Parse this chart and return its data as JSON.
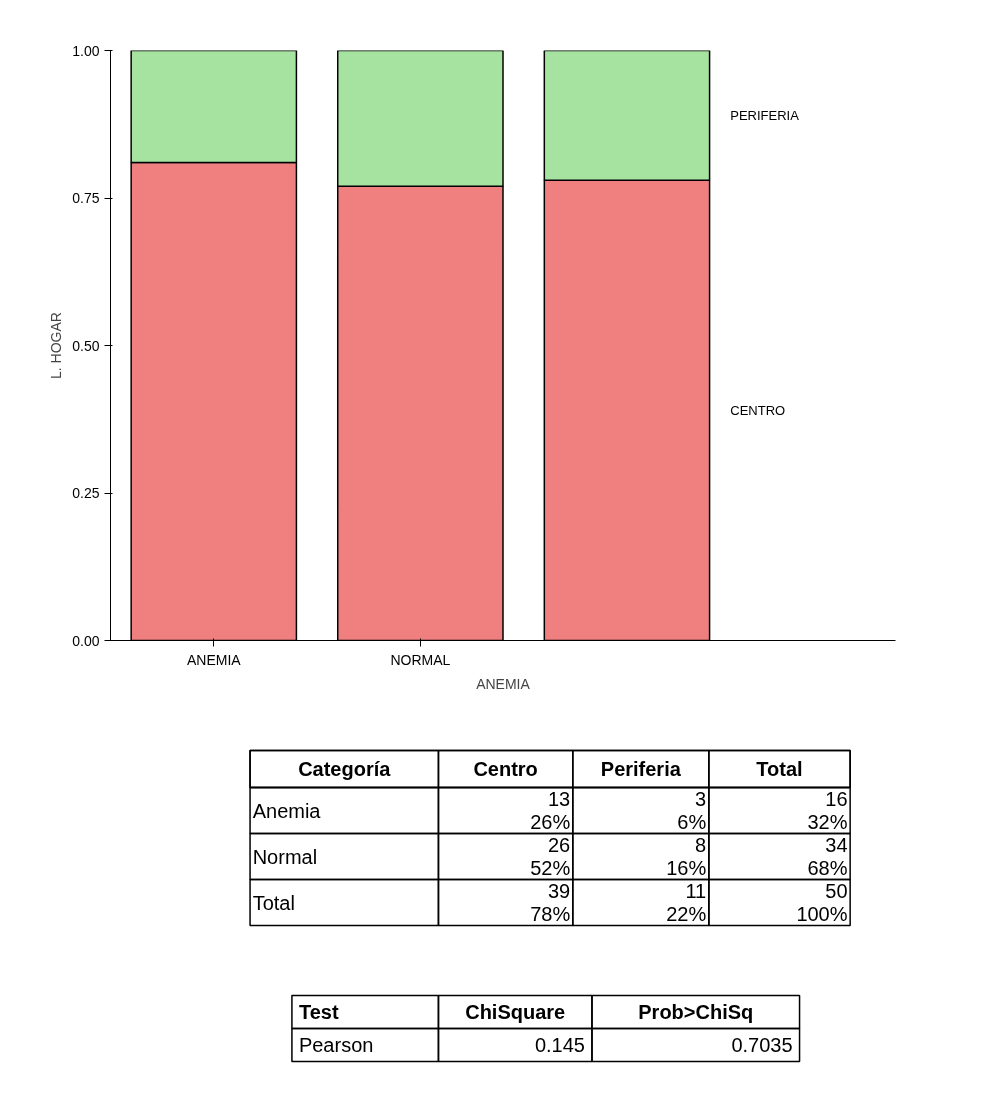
{
  "chart_data": {
    "type": "bar",
    "stacked": true,
    "ylabel": "L. HOGAR",
    "xlabel": "ANEMIA",
    "categories": [
      "ANEMIA",
      "NORMAL",
      null
    ],
    "series": [
      {
        "name": "CENTRO",
        "color": "#f08080",
        "values": [
          0.81,
          0.77,
          0.78
        ]
      },
      {
        "name": "PERIFERIA",
        "color": "#a6e3a0",
        "values": [
          0.19,
          0.23,
          0.22
        ]
      }
    ],
    "ylim": [
      0,
      1
    ],
    "yticks": [
      {
        "value": 0,
        "label": "0.00"
      },
      {
        "value": 0.25,
        "label": "0.25"
      },
      {
        "value": 0.5,
        "label": "0.50"
      },
      {
        "value": 0.75,
        "label": "0.75"
      },
      {
        "value": 1,
        "label": "1.00"
      }
    ],
    "grid": false,
    "annotations": [
      "Categoría",
      "Centro",
      "Periferia",
      "Total",
      "Anemia",
      "13",
      "3",
      "16",
      "26%",
      "6%",
      "32%",
      "Normal",
      "26",
      "8",
      "34",
      "52%",
      "16%",
      "68%",
      "Total",
      "39",
      "11",
      "50",
      "78%",
      "22%",
      "100%",
      "Test",
      "ChiSquare",
      "Prob>ChiSq",
      "Pearson",
      "0.145",
      "0.7035"
    ]
  }
}
